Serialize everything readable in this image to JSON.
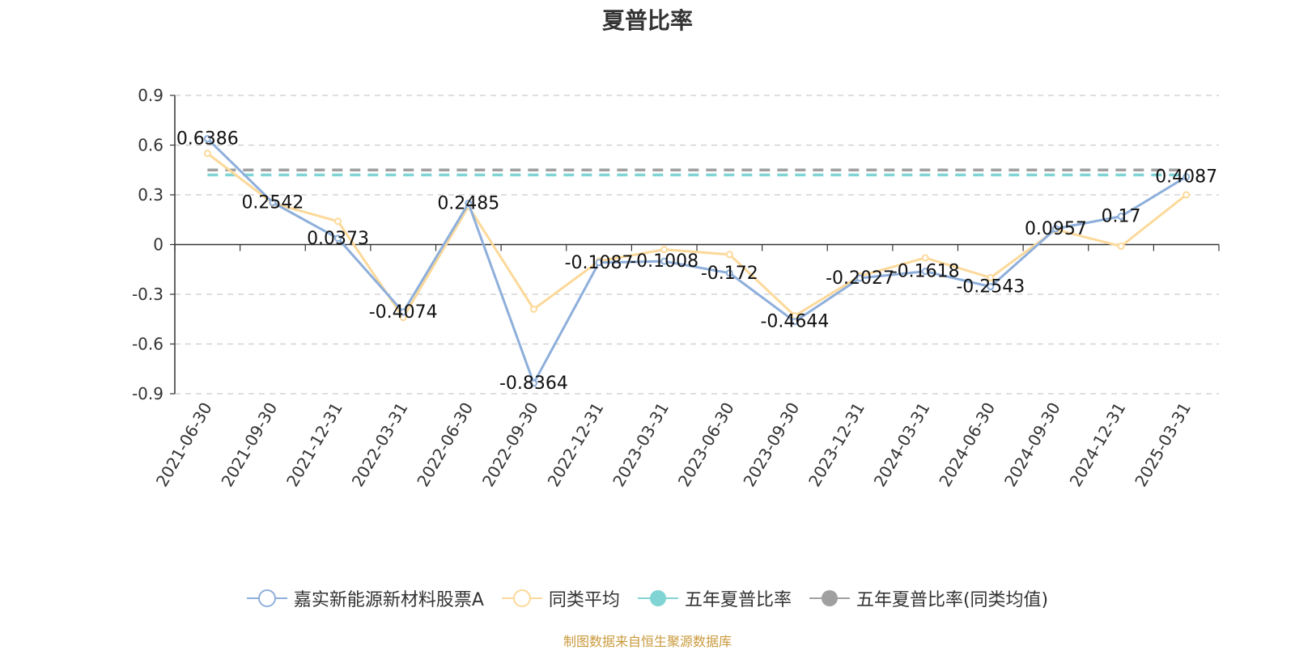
{
  "chart_data": {
    "type": "line",
    "title": "夏普比率",
    "categories": [
      "2021-06-30",
      "2021-09-30",
      "2021-12-31",
      "2022-03-31",
      "2022-06-30",
      "2022-09-30",
      "2022-12-31",
      "2023-03-31",
      "2023-06-30",
      "2023-09-30",
      "2023-12-31",
      "2024-03-31",
      "2024-06-30",
      "2024-09-30",
      "2024-12-31",
      "2025-03-31"
    ],
    "ylim": [
      -0.9,
      0.9
    ],
    "yticks": [
      "0.9",
      "0.6",
      "0.3",
      "0",
      "-0.3",
      "-0.6",
      "-0.9"
    ],
    "grid": true,
    "legend_position": "bottom",
    "series": [
      {
        "name": "嘉实新能源新材料股票A",
        "color": "#8eafdb",
        "values": [
          0.6386,
          0.2542,
          0.0373,
          -0.4074,
          0.2485,
          -0.8364,
          -0.1087,
          -0.1008,
          -0.172,
          -0.4644,
          -0.2027,
          -0.1618,
          -0.2543,
          0.0957,
          0.17,
          0.4087
        ],
        "labels": [
          "0.6386",
          "0.2542",
          "0.0373",
          "-0.4074",
          "0.2485",
          "-0.8364",
          "-0.1087",
          "-0.1008",
          "-0.172",
          "-0.4644",
          "-0.2027",
          "-0.1618",
          "-0.2543",
          "0.0957",
          "0.17",
          "0.4087"
        ]
      },
      {
        "name": "同类平均",
        "color": "#fcd99a",
        "values": [
          0.55,
          0.25,
          0.14,
          -0.44,
          0.23,
          -0.39,
          -0.1,
          -0.03,
          -0.06,
          -0.43,
          -0.19,
          -0.08,
          -0.2,
          0.09,
          -0.01,
          0.3
        ]
      },
      {
        "name": "五年夏普比率",
        "color": "#80d4d4",
        "type": "reference",
        "value": 0.42
      },
      {
        "name": "五年夏普比率(同类均值)",
        "color": "#a0a0a0",
        "type": "reference",
        "value": 0.45
      }
    ]
  },
  "legend": [
    {
      "label": "嘉实新能源新材料股票A",
      "color": "#8eafdb",
      "style": "hollow"
    },
    {
      "label": "同类平均",
      "color": "#fcd99a",
      "style": "hollow"
    },
    {
      "label": "五年夏普比率",
      "color": "#80d4d4",
      "style": "filled"
    },
    {
      "label": "五年夏普比率(同类均值)",
      "color": "#a0a0a0",
      "style": "filled"
    }
  ],
  "source_note": "制图数据来自恒生聚源数据库"
}
